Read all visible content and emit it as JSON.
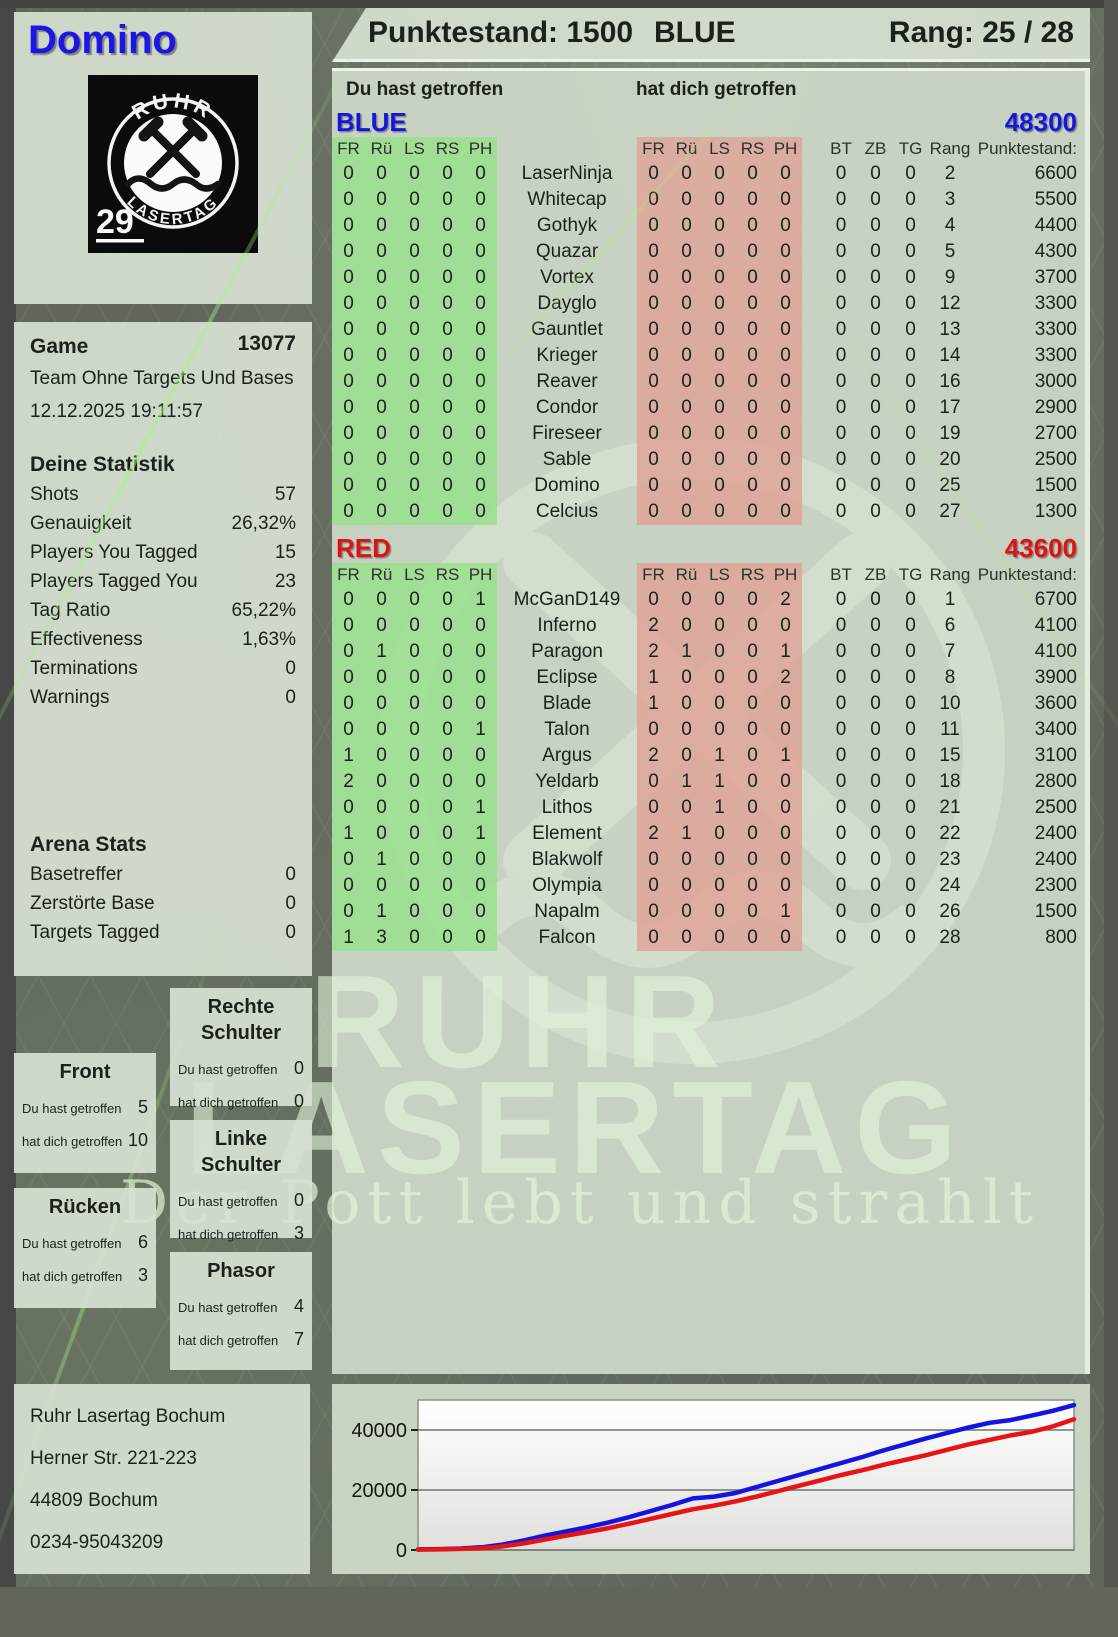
{
  "colors": {
    "blue": "#1617de",
    "red": "#de1212",
    "green_block": "#a6e0a0",
    "red_block": "#ddafa7",
    "panel": "#cdd8c8"
  },
  "header": {
    "player_name": "Domino",
    "punktestand": "Punktestand: 1500",
    "team": "BLUE",
    "rang": "Rang: 25 / 28"
  },
  "logo": {
    "arc_top": "RUHR",
    "arc_bottom": "LASERTAG",
    "badge": "29"
  },
  "game_info": {
    "label": "Game",
    "number": "13077",
    "mode": "Team Ohne Targets Und Bases",
    "datetime": "12.12.2025 19:11:57"
  },
  "deine_statistik": {
    "title": "Deine Statistik",
    "rows": [
      {
        "label": "Shots",
        "value": "57"
      },
      {
        "label": "Genauigkeit",
        "value": "26,32%"
      },
      {
        "label": "Players You Tagged",
        "value": "15"
      },
      {
        "label": "Players Tagged You",
        "value": "23"
      },
      {
        "label": "Tag Ratio",
        "value": "65,22%"
      },
      {
        "label": "Effectiveness",
        "value": "1,63%"
      },
      {
        "label": "Terminations",
        "value": "0"
      },
      {
        "label": "Warnings",
        "value": "0"
      }
    ]
  },
  "arena_stats": {
    "title": "Arena Stats",
    "rows": [
      {
        "label": "Basetreffer",
        "value": "0"
      },
      {
        "label": "Zerstörte Base",
        "value": "0"
      },
      {
        "label": "Targets Tagged",
        "value": "0"
      }
    ]
  },
  "hit_labels": {
    "you": "Du hast getroffen",
    "them": "hat dich getroffen"
  },
  "hit_zones": [
    {
      "key": "rechte",
      "title": "Rechte Schulter",
      "you": "0",
      "them": "0"
    },
    {
      "key": "front",
      "title": "Front",
      "you": "5",
      "them": "10"
    },
    {
      "key": "linke",
      "title": "Linke Schulter",
      "you": "0",
      "them": "3"
    },
    {
      "key": "ruecken",
      "title": "Rücken",
      "you": "6",
      "them": "3"
    },
    {
      "key": "phasor",
      "title": "Phasor",
      "you": "4",
      "them": "7"
    }
  ],
  "scoreboard": {
    "you_hit_label": "Du hast getroffen",
    "hit_you_label": "hat dich getroffen",
    "hit_columns": [
      "FR",
      "Rü",
      "LS",
      "RS",
      "PH"
    ],
    "right_columns": [
      "BT",
      "ZB",
      "TG",
      "Rang",
      "Punktestand:"
    ],
    "teams": [
      {
        "name": "BLUE",
        "color": "#1617de",
        "total": "48300",
        "rows": [
          [
            0,
            0,
            0,
            0,
            0,
            "LaserNinja",
            0,
            0,
            0,
            0,
            0,
            0,
            0,
            0,
            2,
            6600
          ],
          [
            0,
            0,
            0,
            0,
            0,
            "Whitecap",
            0,
            0,
            0,
            0,
            0,
            0,
            0,
            0,
            3,
            5500
          ],
          [
            0,
            0,
            0,
            0,
            0,
            "Gothyk",
            0,
            0,
            0,
            0,
            0,
            0,
            0,
            0,
            4,
            4400
          ],
          [
            0,
            0,
            0,
            0,
            0,
            "Quazar",
            0,
            0,
            0,
            0,
            0,
            0,
            0,
            0,
            5,
            4300
          ],
          [
            0,
            0,
            0,
            0,
            0,
            "Vortex",
            0,
            0,
            0,
            0,
            0,
            0,
            0,
            0,
            9,
            3700
          ],
          [
            0,
            0,
            0,
            0,
            0,
            "Dayglo",
            0,
            0,
            0,
            0,
            0,
            0,
            0,
            0,
            12,
            3300
          ],
          [
            0,
            0,
            0,
            0,
            0,
            "Gauntlet",
            0,
            0,
            0,
            0,
            0,
            0,
            0,
            0,
            13,
            3300
          ],
          [
            0,
            0,
            0,
            0,
            0,
            "Krieger",
            0,
            0,
            0,
            0,
            0,
            0,
            0,
            0,
            14,
            3300
          ],
          [
            0,
            0,
            0,
            0,
            0,
            "Reaver",
            0,
            0,
            0,
            0,
            0,
            0,
            0,
            0,
            16,
            3000
          ],
          [
            0,
            0,
            0,
            0,
            0,
            "Condor",
            0,
            0,
            0,
            0,
            0,
            0,
            0,
            0,
            17,
            2900
          ],
          [
            0,
            0,
            0,
            0,
            0,
            "Fireseer",
            0,
            0,
            0,
            0,
            0,
            0,
            0,
            0,
            19,
            2700
          ],
          [
            0,
            0,
            0,
            0,
            0,
            "Sable",
            0,
            0,
            0,
            0,
            0,
            0,
            0,
            0,
            20,
            2500
          ],
          [
            0,
            0,
            0,
            0,
            0,
            "Domino",
            0,
            0,
            0,
            0,
            0,
            0,
            0,
            0,
            25,
            1500
          ],
          [
            0,
            0,
            0,
            0,
            0,
            "Celcius",
            0,
            0,
            0,
            0,
            0,
            0,
            0,
            0,
            27,
            1300
          ]
        ]
      },
      {
        "name": "RED",
        "color": "#de1212",
        "total": "43600",
        "rows": [
          [
            0,
            0,
            0,
            0,
            1,
            "McGanD149",
            0,
            0,
            0,
            0,
            2,
            0,
            0,
            0,
            1,
            6700
          ],
          [
            0,
            0,
            0,
            0,
            0,
            "Inferno",
            2,
            0,
            0,
            0,
            0,
            0,
            0,
            0,
            6,
            4100
          ],
          [
            0,
            1,
            0,
            0,
            0,
            "Paragon",
            2,
            1,
            0,
            0,
            1,
            0,
            0,
            0,
            7,
            4100
          ],
          [
            0,
            0,
            0,
            0,
            0,
            "Eclipse",
            1,
            0,
            0,
            0,
            2,
            0,
            0,
            0,
            8,
            3900
          ],
          [
            0,
            0,
            0,
            0,
            0,
            "Blade",
            1,
            0,
            0,
            0,
            0,
            0,
            0,
            0,
            10,
            3600
          ],
          [
            0,
            0,
            0,
            0,
            1,
            "Talon",
            0,
            0,
            0,
            0,
            0,
            0,
            0,
            0,
            11,
            3400
          ],
          [
            1,
            0,
            0,
            0,
            0,
            "Argus",
            2,
            0,
            1,
            0,
            1,
            0,
            0,
            0,
            15,
            3100
          ],
          [
            2,
            0,
            0,
            0,
            0,
            "Yeldarb",
            0,
            1,
            1,
            0,
            0,
            0,
            0,
            0,
            18,
            2800
          ],
          [
            0,
            0,
            0,
            0,
            1,
            "Lithos",
            0,
            0,
            1,
            0,
            0,
            0,
            0,
            0,
            21,
            2500
          ],
          [
            1,
            0,
            0,
            0,
            1,
            "Element",
            2,
            1,
            0,
            0,
            0,
            0,
            0,
            0,
            22,
            2400
          ],
          [
            0,
            1,
            0,
            0,
            0,
            "Blakwolf",
            0,
            0,
            0,
            0,
            0,
            0,
            0,
            0,
            23,
            2400
          ],
          [
            0,
            0,
            0,
            0,
            0,
            "Olympia",
            0,
            0,
            0,
            0,
            0,
            0,
            0,
            0,
            24,
            2300
          ],
          [
            0,
            1,
            0,
            0,
            0,
            "Napalm",
            0,
            0,
            0,
            0,
            1,
            0,
            0,
            0,
            26,
            1500
          ],
          [
            1,
            3,
            0,
            0,
            0,
            "Falcon",
            0,
            0,
            0,
            0,
            0,
            0,
            0,
            0,
            28,
            800
          ]
        ]
      }
    ]
  },
  "watermark": {
    "line1": "RUHR",
    "line2": "LASERTAG",
    "tagline": "Der Pott lebt und strahlt"
  },
  "address": {
    "lines": [
      "Ruhr Lasertag Bochum",
      "Herner Str. 221-223",
      "44809 Bochum",
      "0234-95043209"
    ]
  },
  "chart_data": {
    "type": "line",
    "title": "",
    "xlabel": "",
    "ylabel": "",
    "ylim": [
      0,
      50000
    ],
    "yticks": [
      "0",
      "20000",
      "40000"
    ],
    "grid": true,
    "legend_position": "none",
    "series": [
      {
        "name": "BLUE",
        "color": "#1414e0",
        "values": [
          200,
          300,
          500,
          900,
          1800,
          3200,
          4800,
          6200,
          7600,
          9200,
          11000,
          13000,
          15000,
          17200,
          17800,
          19000,
          21000,
          23000,
          25000,
          27000,
          29000,
          31000,
          33200,
          35200,
          37200,
          39000,
          40800,
          42400,
          43300,
          44800,
          46400,
          48300
        ]
      },
      {
        "name": "RED",
        "color": "#e61414",
        "values": [
          150,
          200,
          350,
          600,
          1200,
          2200,
          3500,
          4800,
          6000,
          7300,
          8800,
          10400,
          12000,
          13600,
          14800,
          16200,
          17800,
          19600,
          21400,
          23200,
          25000,
          26600,
          28400,
          30000,
          31600,
          33400,
          35200,
          36700,
          38200,
          39400,
          41200,
          43600
        ]
      }
    ]
  }
}
